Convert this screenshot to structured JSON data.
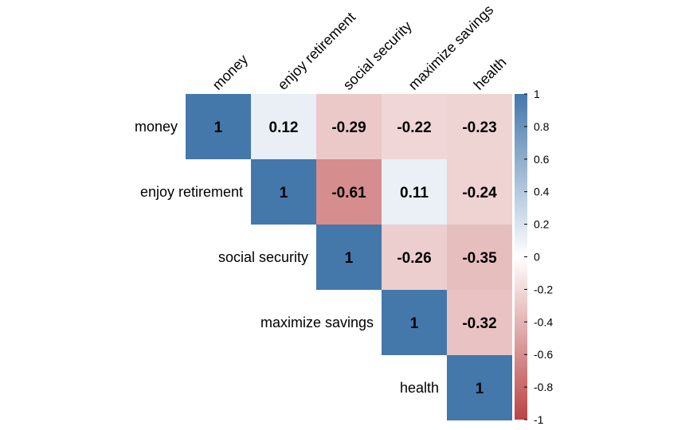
{
  "chart_data": {
    "type": "heatmap",
    "variables": [
      "money",
      "enjoy retirement",
      "social security",
      "maximize savings",
      "health"
    ],
    "matrix": [
      [
        1,
        0.12,
        -0.29,
        -0.22,
        -0.23
      ],
      [
        null,
        1,
        -0.61,
        0.11,
        -0.24
      ],
      [
        null,
        null,
        1,
        -0.26,
        -0.35
      ],
      [
        null,
        null,
        null,
        1,
        -0.32
      ],
      [
        null,
        null,
        null,
        null,
        1
      ]
    ],
    "cell_labels": [
      [
        "1",
        "0.12",
        "-0.29",
        "-0.22",
        "-0.23"
      ],
      [
        null,
        "1",
        "-0.61",
        "0.11",
        "-0.24"
      ],
      [
        null,
        null,
        "1",
        "-0.26",
        "-0.35"
      ],
      [
        null,
        null,
        null,
        "1",
        "-0.32"
      ],
      [
        null,
        null,
        null,
        null,
        "1"
      ]
    ],
    "layout": "upper-triangle",
    "color_scale": {
      "range": [
        -1,
        1
      ],
      "low": "#BB4444",
      "mid": "#FFFFFF",
      "high": "#4477AA"
    },
    "colorbar_ticks": [
      "1",
      "0.8",
      "0.6",
      "0.4",
      "0.2",
      "0",
      "-0.2",
      "-0.4",
      "-0.6",
      "-0.8",
      "-1"
    ],
    "colorbar_tick_values": [
      1,
      0.8,
      0.6,
      0.4,
      0.2,
      0,
      -0.2,
      -0.4,
      -0.6,
      -0.8,
      -1
    ],
    "legend_position": "right"
  }
}
